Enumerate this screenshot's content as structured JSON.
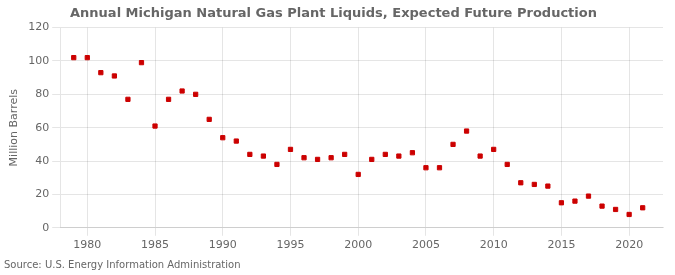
{
  "chart_data": {
    "type": "scatter",
    "title": "Annual Michigan Natural Gas Plant Liquids, Expected Future Production",
    "ylabel": "Million Barrels",
    "annotation": "Source: U.S. Energy Information Administration",
    "x": [
      1979,
      1980,
      1981,
      1982,
      1983,
      1984,
      1985,
      1986,
      1987,
      1988,
      1989,
      1990,
      1991,
      1992,
      1993,
      1994,
      1995,
      1996,
      1997,
      1998,
      1999,
      2000,
      2001,
      2002,
      2003,
      2004,
      2005,
      2006,
      2007,
      2008,
      2009,
      2010,
      2011,
      2012,
      2013,
      2014,
      2015,
      2016,
      2017,
      2018,
      2019,
      2020,
      2021
    ],
    "values": [
      102,
      102,
      93,
      91,
      77,
      99,
      61,
      77,
      82,
      80,
      65,
      54,
      52,
      44,
      43,
      38,
      47,
      42,
      41,
      42,
      44,
      32,
      41,
      44,
      43,
      45,
      36,
      36,
      50,
      58,
      43,
      47,
      38,
      27,
      26,
      25,
      15,
      16,
      19,
      13,
      11,
      8,
      12
    ],
    "color": "#cc0000",
    "marker": "square",
    "xlim": [
      1978,
      2022.5
    ],
    "xticks": [
      1980,
      1985,
      1990,
      1995,
      2000,
      2005,
      2010,
      2015,
      2020
    ],
    "ylim": [
      0,
      120
    ],
    "yticks": [
      0,
      20,
      40,
      60,
      80,
      100,
      120
    ],
    "grid": true
  }
}
